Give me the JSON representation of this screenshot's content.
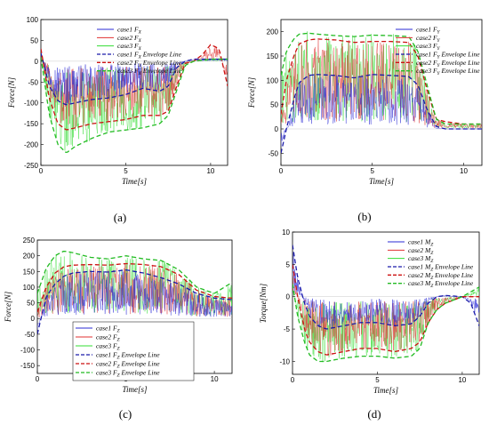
{
  "colors": {
    "case1": "#2b2bd6",
    "case2": "#e03030",
    "case3": "#33dd33",
    "case1_env": "#1a1aaa",
    "case2_env": "#cc1111",
    "case3_env": "#22bb22"
  },
  "chart_data": [
    {
      "type": "line",
      "panel_label": "(a)",
      "xlabel": "Time[s]",
      "ylabel": "Force[N]",
      "xlim": [
        0,
        11
      ],
      "ylim": [
        -250,
        100
      ],
      "xticks": [
        0,
        5,
        10
      ],
      "yticks": [
        100,
        50,
        0,
        -50,
        -100,
        -150,
        -200,
        -250
      ],
      "legend_position": "top-right",
      "legend": [
        {
          "label": "case1 F",
          "sub": "X",
          "suffix": "",
          "style": "solid",
          "color": "#2b2bd6"
        },
        {
          "label": "case2 F",
          "sub": "X",
          "suffix": "",
          "style": "solid",
          "color": "#e03030"
        },
        {
          "label": "case3 F",
          "sub": "X",
          "suffix": "",
          "style": "solid",
          "color": "#33dd33"
        },
        {
          "label": "case1 F",
          "sub": "X",
          "suffix": " Envelope Line",
          "style": "dashed",
          "color": "#1a1aaa"
        },
        {
          "label": "case2 F",
          "sub": "X",
          "suffix": " Envelope Line",
          "style": "dashed",
          "color": "#cc1111"
        },
        {
          "label": "case3 F",
          "sub": "X",
          "suffix": " Envelope Line",
          "style": "dashed",
          "color": "#22bb22"
        }
      ],
      "series": [
        {
          "name": "case1 F_X Envelope Line",
          "x": [
            0,
            0.5,
            1,
            1.5,
            2,
            3,
            4,
            5,
            6,
            7,
            7.5,
            8,
            8.5,
            9,
            10,
            11
          ],
          "y": [
            20,
            -60,
            -95,
            -105,
            -100,
            -92,
            -88,
            -80,
            -65,
            -72,
            -60,
            -15,
            0,
            5,
            5,
            5
          ]
        },
        {
          "name": "case2 F_X Envelope Line",
          "x": [
            0,
            0.5,
            1,
            1.5,
            2,
            3,
            4,
            5,
            6,
            7,
            7.5,
            8,
            8.5,
            9,
            9.5,
            10,
            10.5,
            11
          ],
          "y": [
            30,
            -90,
            -150,
            -165,
            -160,
            -150,
            -145,
            -140,
            -130,
            -130,
            -120,
            -60,
            -5,
            0,
            15,
            40,
            30,
            -60
          ]
        },
        {
          "name": "case3 F_X Envelope Line",
          "x": [
            0,
            0.5,
            1,
            1.5,
            2,
            3,
            4,
            5,
            6,
            7,
            7.5,
            8,
            8.5,
            9,
            10,
            11
          ],
          "y": [
            10,
            -130,
            -200,
            -220,
            -205,
            -185,
            -170,
            -165,
            -160,
            -150,
            -130,
            -70,
            -10,
            0,
            5,
            5
          ]
        }
      ]
    },
    {
      "type": "line",
      "panel_label": "(b)",
      "xlabel": "Time[s]",
      "ylabel": "Force[N]",
      "xlim": [
        0,
        11
      ],
      "ylim": [
        -75,
        225
      ],
      "xticks": [
        0,
        5,
        10
      ],
      "yticks": [
        200,
        150,
        100,
        50,
        0,
        -50
      ],
      "legend_position": "top-right",
      "legend": [
        {
          "label": "case1 F",
          "sub": "Y",
          "suffix": "",
          "style": "solid",
          "color": "#2b2bd6"
        },
        {
          "label": "case2 F",
          "sub": "Y",
          "suffix": "",
          "style": "solid",
          "color": "#e03030"
        },
        {
          "label": "case3 F",
          "sub": "Y",
          "suffix": "",
          "style": "solid",
          "color": "#33dd33"
        },
        {
          "label": "case1 F",
          "sub": "Y",
          "suffix": " Envelope Line",
          "style": "dashed",
          "color": "#1a1aaa"
        },
        {
          "label": "case2 F",
          "sub": "Y",
          "suffix": " Envelope Line",
          "style": "dashed",
          "color": "#cc1111"
        },
        {
          "label": "case3 F",
          "sub": "Y",
          "suffix": " Envelope Line",
          "style": "dashed",
          "color": "#22bb22"
        }
      ],
      "series": [
        {
          "name": "case1 F_Y Envelope Line",
          "x": [
            0,
            0.3,
            0.7,
            1,
            1.5,
            2,
            3,
            4,
            5,
            6,
            7,
            7.5,
            8,
            8.5,
            9,
            10,
            11
          ],
          "y": [
            -50,
            0,
            60,
            95,
            110,
            112,
            110,
            105,
            112,
            110,
            108,
            90,
            40,
            5,
            0,
            0,
            0
          ]
        },
        {
          "name": "case2 F_Y Envelope Line",
          "x": [
            0,
            0.3,
            0.7,
            1,
            1.5,
            2,
            3,
            4,
            5,
            6,
            7,
            7.5,
            8,
            8.5,
            9,
            10,
            11
          ],
          "y": [
            30,
            100,
            150,
            175,
            183,
            185,
            183,
            178,
            180,
            180,
            178,
            150,
            80,
            20,
            15,
            10,
            10
          ]
        },
        {
          "name": "case3 F_Y Envelope Line",
          "x": [
            0,
            0.3,
            0.7,
            1,
            1.5,
            2,
            3,
            4,
            5,
            6,
            7,
            7.5,
            8,
            8.5,
            9,
            10,
            11
          ],
          "y": [
            110,
            160,
            185,
            195,
            197,
            195,
            192,
            190,
            193,
            192,
            190,
            160,
            90,
            20,
            10,
            10,
            10
          ]
        }
      ]
    },
    {
      "type": "line",
      "panel_label": "(c)",
      "xlabel": "Time[s]",
      "ylabel": "Force[N]",
      "xlim": [
        0,
        11
      ],
      "ylim": [
        -175,
        250
      ],
      "xticks": [
        0,
        5,
        10
      ],
      "yticks": [
        250,
        200,
        150,
        100,
        50,
        0,
        -50,
        -100,
        -150
      ],
      "legend_position": "bottom-center",
      "legend": [
        {
          "label": "case1 F",
          "sub": "Z",
          "suffix": "",
          "style": "solid",
          "color": "#2b2bd6"
        },
        {
          "label": "case2 F",
          "sub": "Z",
          "suffix": "",
          "style": "solid",
          "color": "#e03030"
        },
        {
          "label": "case3 F",
          "sub": "Z",
          "suffix": "",
          "style": "solid",
          "color": "#33dd33"
        },
        {
          "label": "case1 F",
          "sub": "Z",
          "suffix": " Envelope Line",
          "style": "dashed",
          "color": "#1a1aaa"
        },
        {
          "label": "case2 F",
          "sub": "Z",
          "suffix": " Envelope Line",
          "style": "dashed",
          "color": "#cc1111"
        },
        {
          "label": "case3 F",
          "sub": "Z",
          "suffix": " Envelope Line",
          "style": "dashed",
          "color": "#22bb22"
        }
      ],
      "series": [
        {
          "name": "case1 F_Z Envelope Line",
          "x": [
            0,
            0.5,
            1,
            1.5,
            2,
            3,
            4,
            5,
            6,
            7,
            8,
            9,
            10,
            11
          ],
          "y": [
            -50,
            70,
            110,
            135,
            145,
            150,
            148,
            155,
            145,
            130,
            110,
            80,
            65,
            60
          ]
        },
        {
          "name": "case2 F_Z Envelope Line",
          "x": [
            0,
            0.5,
            1,
            1.5,
            2,
            3,
            4,
            5,
            6,
            7,
            8,
            9,
            10,
            11
          ],
          "y": [
            20,
            100,
            145,
            165,
            170,
            172,
            170,
            175,
            172,
            165,
            140,
            90,
            70,
            65
          ]
        },
        {
          "name": "case3 F_Z Envelope Line",
          "x": [
            0,
            0.5,
            1,
            1.5,
            2,
            3,
            4,
            5,
            6,
            7,
            8,
            9,
            10,
            11
          ],
          "y": [
            80,
            160,
            200,
            215,
            210,
            195,
            190,
            200,
            190,
            185,
            155,
            100,
            80,
            115
          ]
        }
      ]
    },
    {
      "type": "line",
      "panel_label": "(d)",
      "xlabel": "Time[s]",
      "ylabel": "Torque[Nm]",
      "xlim": [
        0,
        11
      ],
      "ylim": [
        -12,
        10
      ],
      "xticks": [
        0,
        5,
        10
      ],
      "yticks": [
        10,
        5,
        0,
        -5,
        -10
      ],
      "legend_position": "top-right",
      "legend": [
        {
          "label": "case1 M",
          "sub": "Z",
          "suffix": "",
          "style": "solid",
          "color": "#2b2bd6"
        },
        {
          "label": "case2 M",
          "sub": "Z",
          "suffix": "",
          "style": "solid",
          "color": "#e03030"
        },
        {
          "label": "case3 M",
          "sub": "Z",
          "suffix": "",
          "style": "solid",
          "color": "#33dd33"
        },
        {
          "label": "case1 M",
          "sub": "Z",
          "suffix": " Envelope Line",
          "style": "dashed",
          "color": "#1a1aaa"
        },
        {
          "label": "case2 M",
          "sub": "Z",
          "suffix": " Envelope Line",
          "style": "dashed",
          "color": "#cc1111"
        },
        {
          "label": "case3 M",
          "sub": "Z",
          "suffix": " Envelope Line",
          "style": "dashed",
          "color": "#22bb22"
        }
      ],
      "series": [
        {
          "name": "case1 M_Z Envelope Line",
          "x": [
            0,
            0.3,
            0.7,
            1,
            1.5,
            2,
            3,
            4,
            5,
            6,
            7,
            7.5,
            8,
            8.5,
            9,
            10,
            10.5,
            11
          ],
          "y": [
            8,
            3,
            -1,
            -3,
            -4.5,
            -5,
            -4.5,
            -4,
            -4,
            -4.5,
            -4.2,
            -3,
            -1,
            0,
            0.2,
            0,
            -1,
            -4.5
          ]
        },
        {
          "name": "case2 M_Z Envelope Line",
          "x": [
            0,
            0.3,
            0.7,
            1,
            1.5,
            2,
            3,
            4,
            5,
            6,
            7,
            7.5,
            8,
            8.5,
            9,
            10,
            11
          ],
          "y": [
            5,
            0,
            -5,
            -7,
            -8.5,
            -9,
            -8.5,
            -8,
            -8,
            -8.5,
            -8,
            -7,
            -4,
            -2,
            -1,
            0,
            0
          ]
        },
        {
          "name": "case3 M_Z Envelope Line",
          "x": [
            0,
            0.3,
            0.7,
            1,
            1.5,
            2,
            3,
            4,
            5,
            6,
            7,
            7.5,
            8,
            8.5,
            9,
            10,
            11
          ],
          "y": [
            2,
            -3,
            -7,
            -9,
            -10,
            -10,
            -9.5,
            -9.2,
            -9.2,
            -9.5,
            -9.2,
            -8,
            -4,
            -2,
            -1,
            0,
            1.5
          ]
        }
      ]
    }
  ]
}
